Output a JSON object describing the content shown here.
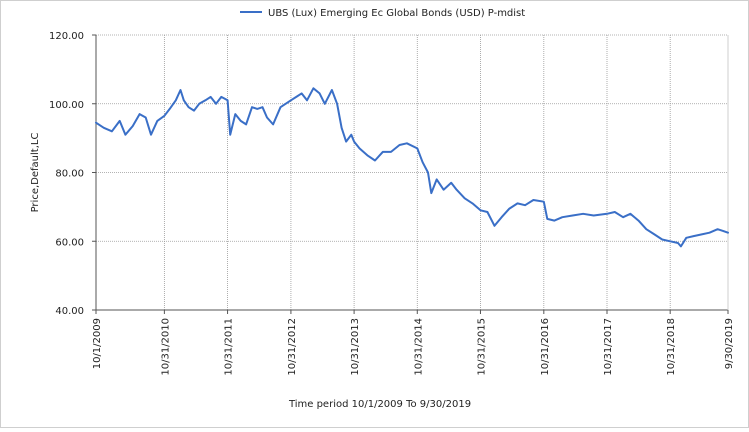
{
  "chart_data": {
    "type": "line",
    "legend_position": "top-center",
    "xlabel": "Time period 10/1/2009 To 9/30/2019",
    "ylabel": "Price,Default,LC",
    "ylim": [
      40,
      120
    ],
    "xlim": [
      "2009-10-01",
      "2019-09-30"
    ],
    "y_ticks": [
      "40.00",
      "60.00",
      "80.00",
      "100.00",
      "120.00"
    ],
    "x_ticks": [
      "10/1/2009",
      "10/31/2010",
      "10/31/2011",
      "10/31/2012",
      "10/31/2013",
      "10/31/2014",
      "10/31/2015",
      "10/31/2016",
      "10/31/2017",
      "10/31/2018",
      "9/30/2019"
    ],
    "grid": true,
    "series": [
      {
        "name": "UBS (Lux) Emerging Ec Global Bonds (USD) P-mdist",
        "color": "#3a6fc7",
        "points": [
          [
            "2009-10-01",
            94.5
          ],
          [
            "2009-11-15",
            93.0
          ],
          [
            "2010-01-01",
            92.0
          ],
          [
            "2010-02-15",
            95.0
          ],
          [
            "2010-03-20",
            91.0
          ],
          [
            "2010-05-01",
            93.5
          ],
          [
            "2010-06-10",
            97.0
          ],
          [
            "2010-07-15",
            96.0
          ],
          [
            "2010-08-15",
            91.0
          ],
          [
            "2010-09-20",
            95.0
          ],
          [
            "2010-10-31",
            96.5
          ],
          [
            "2010-12-01",
            98.5
          ],
          [
            "2011-01-05",
            101.0
          ],
          [
            "2011-02-01",
            104.0
          ],
          [
            "2011-02-20",
            101.0
          ],
          [
            "2011-03-20",
            99.0
          ],
          [
            "2011-04-20",
            98.0
          ],
          [
            "2011-05-20",
            100.0
          ],
          [
            "2011-06-25",
            101.0
          ],
          [
            "2011-07-25",
            102.0
          ],
          [
            "2011-08-25",
            100.0
          ],
          [
            "2011-09-25",
            102.0
          ],
          [
            "2011-10-31",
            101.0
          ],
          [
            "2011-11-15",
            91.0
          ],
          [
            "2011-12-15",
            97.0
          ],
          [
            "2012-01-15",
            95.0
          ],
          [
            "2012-02-15",
            94.0
          ],
          [
            "2012-03-20",
            99.0
          ],
          [
            "2012-04-20",
            98.5
          ],
          [
            "2012-05-20",
            99.0
          ],
          [
            "2012-06-15",
            96.0
          ],
          [
            "2012-07-20",
            94.0
          ],
          [
            "2012-09-01",
            99.0
          ],
          [
            "2012-10-31",
            101.0
          ],
          [
            "2012-12-01",
            102.0
          ],
          [
            "2013-01-01",
            103.0
          ],
          [
            "2013-02-01",
            101.0
          ],
          [
            "2013-03-10",
            104.5
          ],
          [
            "2013-04-15",
            103.0
          ],
          [
            "2013-05-15",
            100.0
          ],
          [
            "2013-06-25",
            104.0
          ],
          [
            "2013-07-25",
            100.0
          ],
          [
            "2013-08-20",
            93.0
          ],
          [
            "2013-09-15",
            89.0
          ],
          [
            "2013-10-15",
            91.0
          ],
          [
            "2013-10-31",
            89.0
          ],
          [
            "2013-12-01",
            87.0
          ],
          [
            "2014-01-15",
            85.0
          ],
          [
            "2014-03-01",
            83.5
          ],
          [
            "2014-04-15",
            86.0
          ],
          [
            "2014-06-01",
            86.0
          ],
          [
            "2014-07-20",
            88.0
          ],
          [
            "2014-09-01",
            88.5
          ],
          [
            "2014-10-31",
            87.0
          ],
          [
            "2014-12-01",
            83.0
          ],
          [
            "2015-01-01",
            80.0
          ],
          [
            "2015-01-20",
            74.0
          ],
          [
            "2015-02-20",
            78.0
          ],
          [
            "2015-04-01",
            75.0
          ],
          [
            "2015-05-15",
            77.0
          ],
          [
            "2015-06-15",
            75.0
          ],
          [
            "2015-08-01",
            72.5
          ],
          [
            "2015-09-15",
            71.0
          ],
          [
            "2015-10-31",
            69.0
          ],
          [
            "2015-12-10",
            68.5
          ],
          [
            "2016-01-20",
            64.5
          ],
          [
            "2016-03-01",
            67.0
          ],
          [
            "2016-04-15",
            69.5
          ],
          [
            "2016-06-01",
            71.0
          ],
          [
            "2016-07-15",
            70.5
          ],
          [
            "2016-09-01",
            72.0
          ],
          [
            "2016-10-31",
            71.5
          ],
          [
            "2016-11-20",
            66.5
          ],
          [
            "2016-12-31",
            66.0
          ],
          [
            "2017-02-15",
            67.0
          ],
          [
            "2017-04-15",
            67.5
          ],
          [
            "2017-06-15",
            68.0
          ],
          [
            "2017-08-15",
            67.5
          ],
          [
            "2017-10-31",
            68.0
          ],
          [
            "2017-12-15",
            68.5
          ],
          [
            "2018-02-01",
            67.0
          ],
          [
            "2018-03-15",
            68.0
          ],
          [
            "2018-05-01",
            66.0
          ],
          [
            "2018-06-15",
            63.5
          ],
          [
            "2018-08-01",
            62.0
          ],
          [
            "2018-09-15",
            60.5
          ],
          [
            "2018-10-31",
            60.0
          ],
          [
            "2018-12-15",
            59.5
          ],
          [
            "2019-01-01",
            58.5
          ],
          [
            "2019-02-01",
            61.0
          ],
          [
            "2019-03-15",
            61.5
          ],
          [
            "2019-05-01",
            62.0
          ],
          [
            "2019-06-15",
            62.5
          ],
          [
            "2019-08-01",
            63.5
          ],
          [
            "2019-09-01",
            63.0
          ],
          [
            "2019-09-30",
            62.5
          ]
        ]
      }
    ]
  }
}
